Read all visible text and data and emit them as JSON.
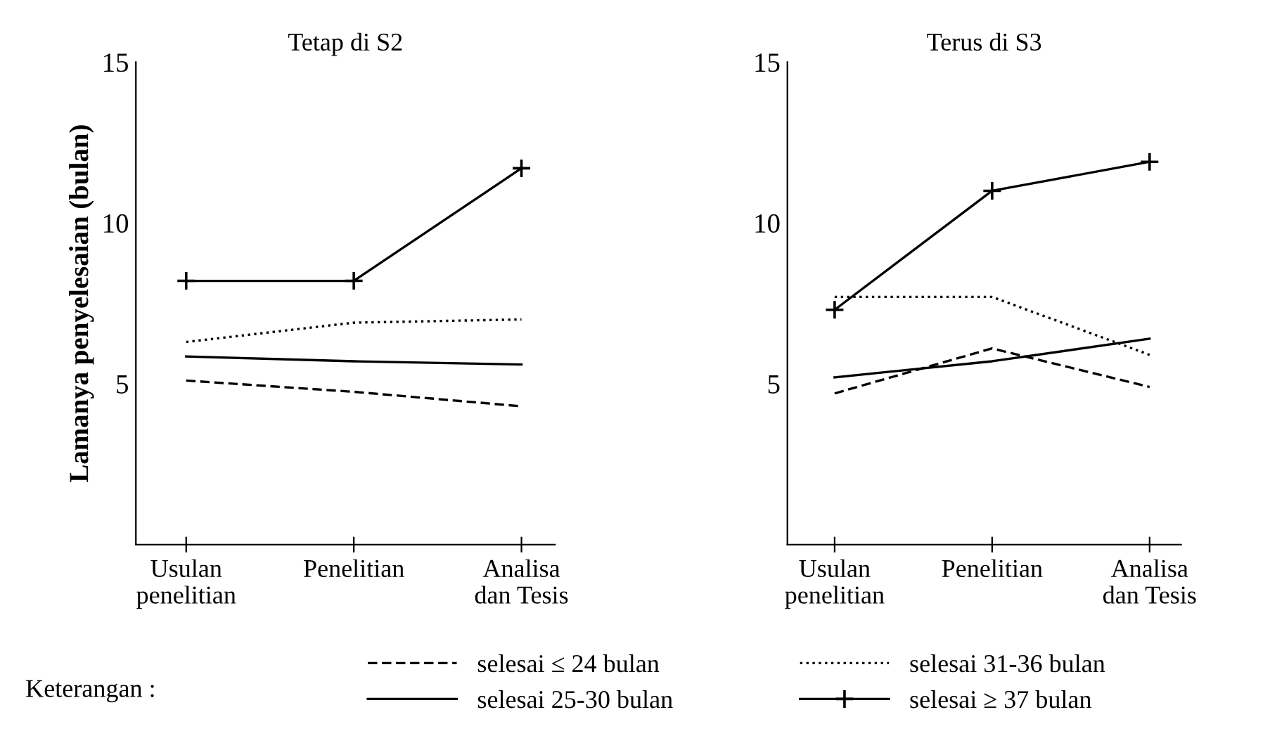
{
  "chart_data": [
    {
      "type": "line",
      "title": "Tetap di S2",
      "ylabel": "Lamanya penyelesaian (bulan)",
      "legend_title": "Keterangan :",
      "legend": "bottom",
      "categories": [
        "Usulan\npenelitian",
        "Penelitian",
        "Analisa\ndan Tesis"
      ],
      "ylim": [
        0,
        15
      ],
      "yticks": [
        5,
        10,
        15
      ],
      "grid": false,
      "series": [
        {
          "name": "selesai ≤ 24 bulan",
          "color": "#000000",
          "line_style": "dashed",
          "marker": "none",
          "values": [
            5.1,
            4.75,
            4.3
          ]
        },
        {
          "name": "selesai 25-30 bulan",
          "color": "#000000",
          "line_style": "solid",
          "marker": "none",
          "values": [
            5.85,
            5.7,
            5.6
          ]
        },
        {
          "name": "selesai 31-36 bulan",
          "color": "#000000",
          "line_style": "dotted",
          "marker": "none",
          "values": [
            6.3,
            6.9,
            7.0
          ]
        },
        {
          "name": "selesai ≥ 37 bulan",
          "color": "#000000",
          "line_style": "solid",
          "marker": "cross",
          "values": [
            8.2,
            8.2,
            11.7
          ]
        }
      ]
    },
    {
      "type": "line",
      "title": "Terus di S3",
      "categories": [
        "Usulan\npenelitian",
        "Penelitian",
        "Analisa\ndan Tesis"
      ],
      "ylim": [
        0,
        15
      ],
      "yticks": [
        5,
        10,
        15
      ],
      "grid": false,
      "series": [
        {
          "color": "#000000",
          "line_style": "dashed",
          "marker": "none",
          "values": [
            4.7,
            6.1,
            4.9
          ]
        },
        {
          "color": "#000000",
          "line_style": "solid",
          "marker": "none",
          "values": [
            5.2,
            5.7,
            6.4
          ]
        },
        {
          "color": "#000000",
          "line_style": "dotted",
          "marker": "none",
          "values": [
            7.7,
            7.7,
            5.9
          ]
        },
        {
          "color": "#000000",
          "line_style": "solid",
          "marker": "cross",
          "values": [
            7.3,
            11.0,
            11.9
          ]
        }
      ]
    }
  ]
}
